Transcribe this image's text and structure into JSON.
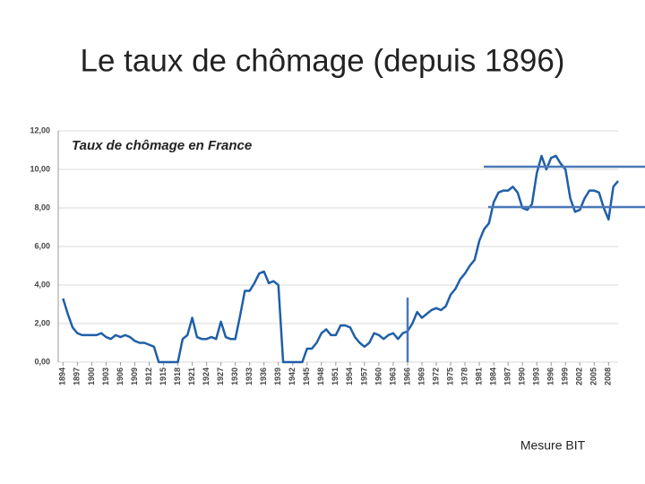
{
  "chart_data": {
    "type": "line",
    "title": "Le taux de chômage (depuis 1896)",
    "subtitle": "Taux de chômage en France",
    "annotation": "Mesure BIT",
    "x": [
      1894,
      1895,
      1896,
      1897,
      1898,
      1899,
      1900,
      1901,
      1902,
      1903,
      1904,
      1905,
      1906,
      1907,
      1908,
      1909,
      1910,
      1911,
      1912,
      1913,
      1914,
      1915,
      1916,
      1917,
      1918,
      1919,
      1920,
      1921,
      1922,
      1923,
      1924,
      1925,
      1926,
      1927,
      1928,
      1929,
      1930,
      1931,
      1932,
      1933,
      1934,
      1935,
      1936,
      1937,
      1938,
      1939,
      1940,
      1941,
      1942,
      1943,
      1944,
      1945,
      1946,
      1947,
      1948,
      1949,
      1950,
      1951,
      1952,
      1953,
      1954,
      1955,
      1956,
      1957,
      1958,
      1959,
      1960,
      1961,
      1962,
      1963,
      1964,
      1965,
      1966,
      1967,
      1968,
      1969,
      1970,
      1971,
      1972,
      1973,
      1974,
      1975,
      1976,
      1977,
      1978,
      1979,
      1980,
      1981,
      1982,
      1983,
      1984,
      1985,
      1986,
      1987,
      1988,
      1989,
      1990,
      1991,
      1992,
      1993,
      1994,
      1995,
      1996,
      1997,
      1998,
      1999,
      2000,
      2001,
      2002,
      2003,
      2004,
      2005,
      2006,
      2007,
      2008,
      2009,
      2010
    ],
    "series": [
      {
        "name": "Taux de chômage",
        "color": "#1f5fa8",
        "values": [
          3.3,
          2.5,
          1.8,
          1.5,
          1.4,
          1.4,
          1.4,
          1.4,
          1.5,
          1.3,
          1.2,
          1.4,
          1.3,
          1.4,
          1.3,
          1.1,
          1.0,
          1.0,
          0.9,
          0.8,
          0,
          0,
          0,
          0,
          0,
          1.2,
          1.4,
          2.3,
          1.3,
          1.2,
          1.2,
          1.3,
          1.2,
          2.1,
          1.3,
          1.2,
          1.2,
          2.4,
          3.7,
          3.7,
          4.1,
          4.6,
          4.7,
          4.1,
          4.2,
          4.0,
          0,
          0,
          0,
          0,
          0,
          0.7,
          0.7,
          1.0,
          1.5,
          1.7,
          1.4,
          1.4,
          1.9,
          1.9,
          1.8,
          1.3,
          1.0,
          0.8,
          1.0,
          1.5,
          1.4,
          1.2,
          1.4,
          1.5,
          1.2,
          1.5,
          1.6,
          2.0,
          2.6,
          2.3,
          2.5,
          2.7,
          2.8,
          2.7,
          2.9,
          3.5,
          3.8,
          4.3,
          4.6,
          5.0,
          5.3,
          6.3,
          6.9,
          7.2,
          8.3,
          8.8,
          8.9,
          8.9,
          9.1,
          8.8,
          8.0,
          7.9,
          8.2,
          9.8,
          10.7,
          10.0,
          10.6,
          10.7,
          10.3,
          10.0,
          8.5,
          7.8,
          7.9,
          8.5,
          8.9,
          8.9,
          8.8,
          8.0,
          7.4,
          9.1,
          9.4
        ]
      }
    ],
    "xlim": [
      1893,
      2010
    ],
    "xticks": [
      1894,
      1897,
      1900,
      1903,
      1906,
      1909,
      1912,
      1915,
      1918,
      1921,
      1924,
      1927,
      1930,
      1933,
      1936,
      1939,
      1942,
      1945,
      1948,
      1951,
      1954,
      1957,
      1960,
      1963,
      1966,
      1969,
      1972,
      1975,
      1978,
      1981,
      1984,
      1987,
      1990,
      1993,
      1996,
      1999,
      2002,
      2005,
      2008
    ],
    "ylim": [
      0,
      12
    ],
    "yticks": [
      {
        "value": 0,
        "label": "0,00"
      },
      {
        "value": 2,
        "label": "2,00"
      },
      {
        "value": 4,
        "label": "4,00"
      },
      {
        "value": 6,
        "label": "6,00"
      },
      {
        "value": 8,
        "label": "8,00"
      },
      {
        "value": 10,
        "label": "10,00"
      },
      {
        "value": 12,
        "label": "12,00"
      }
    ],
    "grid": true
  }
}
